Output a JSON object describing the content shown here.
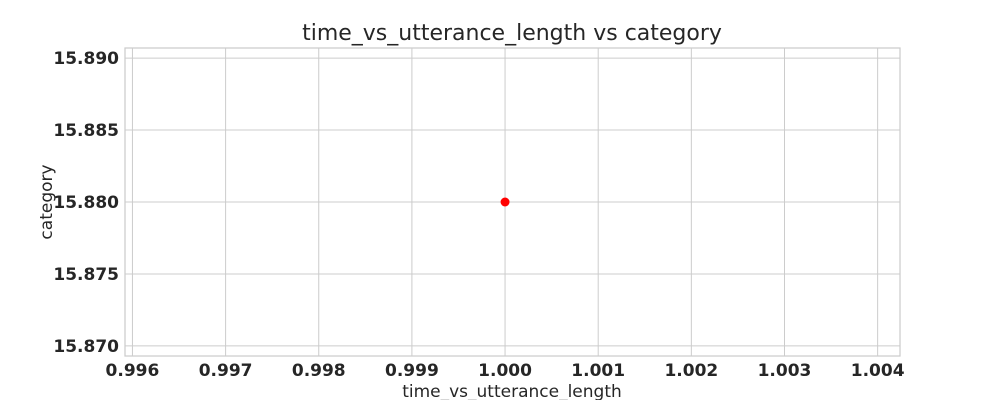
{
  "chart_data": {
    "type": "scatter",
    "title": "time_vs_utterance_length vs category",
    "xlabel": "time_vs_utterance_length",
    "ylabel": "category",
    "xlim": [
      0.99592,
      1.00424
    ],
    "ylim": [
      15.8693,
      15.8907
    ],
    "xticks": [
      0.996,
      0.997,
      0.998,
      0.999,
      1.0,
      1.001,
      1.002,
      1.003,
      1.004
    ],
    "xtick_labels": [
      "0.996",
      "0.997",
      "0.998",
      "0.999",
      "1.000",
      "1.001",
      "1.002",
      "1.003",
      "1.004"
    ],
    "yticks": [
      15.87,
      15.875,
      15.88,
      15.885,
      15.89
    ],
    "ytick_labels": [
      "15.870",
      "15.875",
      "15.880",
      "15.885",
      "15.890"
    ],
    "grid": true,
    "points": [
      {
        "x": 1.0,
        "y": 15.88
      }
    ],
    "point_color": "#ff0000",
    "grid_color": "#cccccc"
  }
}
